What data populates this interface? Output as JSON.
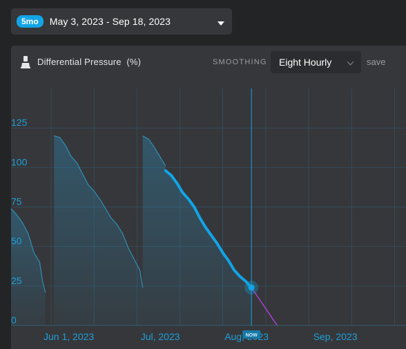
{
  "range": {
    "badge": "5mo",
    "label": "May 3, 2023 - Sep 18, 2023"
  },
  "panel": {
    "title": "Differential Pressure  (%)",
    "title_icon": "flask-icon",
    "smoothing_label": "SMOOTHING",
    "smoothing_value": "Eight Hourly",
    "save_label": "save"
  },
  "colors": {
    "accent": "#12a4e6",
    "history_line": "#2e8fb8",
    "forecast_line": "#b040d8",
    "grid": "#2b6e8f",
    "panel_bg": "#36373a",
    "page_bg": "#232426"
  },
  "chart_data": {
    "type": "line",
    "title": "Differential Pressure  (%)",
    "ylim": [
      0,
      150
    ],
    "yticks": [
      0,
      25,
      50,
      75,
      100,
      125
    ],
    "ytick_labels": [
      "0",
      "25",
      "50",
      "75",
      "100",
      "125"
    ],
    "xlim": [
      "2023-05-03",
      "2023-09-18"
    ],
    "xtick_labels": [
      "Jun 1, 2023",
      "Jul, 2023",
      "Aug, 2023",
      "Sep, 2023"
    ],
    "xticks": [
      "2023-06-01",
      "2023-07-01",
      "2023-08-01",
      "2023-09-01"
    ],
    "now_label": "NOW",
    "now_date": "2023-07-26",
    "series": [
      {
        "role": "history",
        "segments": [
          [
            [
              "2023-05-03",
              74
            ],
            [
              "2023-05-05",
              70
            ],
            [
              "2023-05-07",
              65
            ],
            [
              "2023-05-09",
              58
            ],
            [
              "2023-05-11",
              46
            ],
            [
              "2023-05-13",
              40
            ],
            [
              "2023-05-14",
              28
            ],
            [
              "2023-05-15",
              21
            ]
          ],
          [
            [
              "2023-05-18",
              120
            ],
            [
              "2023-05-20",
              119
            ],
            [
              "2023-05-22",
              114
            ],
            [
              "2023-05-24",
              107
            ],
            [
              "2023-05-26",
              103
            ],
            [
              "2023-05-28",
              96
            ],
            [
              "2023-05-30",
              89
            ],
            [
              "2023-06-01",
              85
            ],
            [
              "2023-06-03",
              80
            ],
            [
              "2023-06-05",
              74
            ],
            [
              "2023-06-07",
              68
            ],
            [
              "2023-06-09",
              64
            ],
            [
              "2023-06-11",
              58
            ],
            [
              "2023-06-13",
              49
            ],
            [
              "2023-06-15",
              42
            ],
            [
              "2023-06-17",
              35
            ],
            [
              "2023-06-18",
              24
            ]
          ],
          [
            [
              "2023-06-18",
              120
            ],
            [
              "2023-06-20",
              118
            ],
            [
              "2023-06-22",
              113
            ],
            [
              "2023-06-24",
              107
            ],
            [
              "2023-06-26",
              101
            ]
          ]
        ]
      },
      {
        "role": "recent",
        "segments": [
          [
            [
              "2023-06-26",
              98
            ],
            [
              "2023-06-28",
              95
            ],
            [
              "2023-06-30",
              90
            ],
            [
              "2023-07-02",
              84
            ],
            [
              "2023-07-04",
              80
            ],
            [
              "2023-07-06",
              75
            ],
            [
              "2023-07-08",
              68
            ],
            [
              "2023-07-10",
              62
            ],
            [
              "2023-07-12",
              57
            ],
            [
              "2023-07-14",
              52
            ],
            [
              "2023-07-16",
              46
            ],
            [
              "2023-07-18",
              41
            ],
            [
              "2023-07-20",
              35
            ],
            [
              "2023-07-22",
              31
            ],
            [
              "2023-07-24",
              28
            ],
            [
              "2023-07-26",
              24
            ]
          ]
        ]
      },
      {
        "role": "forecast",
        "segments": [
          [
            [
              "2023-07-26",
              24
            ],
            [
              "2023-07-29",
              16
            ],
            [
              "2023-08-01",
              8
            ],
            [
              "2023-08-04",
              0
            ]
          ]
        ]
      }
    ]
  }
}
